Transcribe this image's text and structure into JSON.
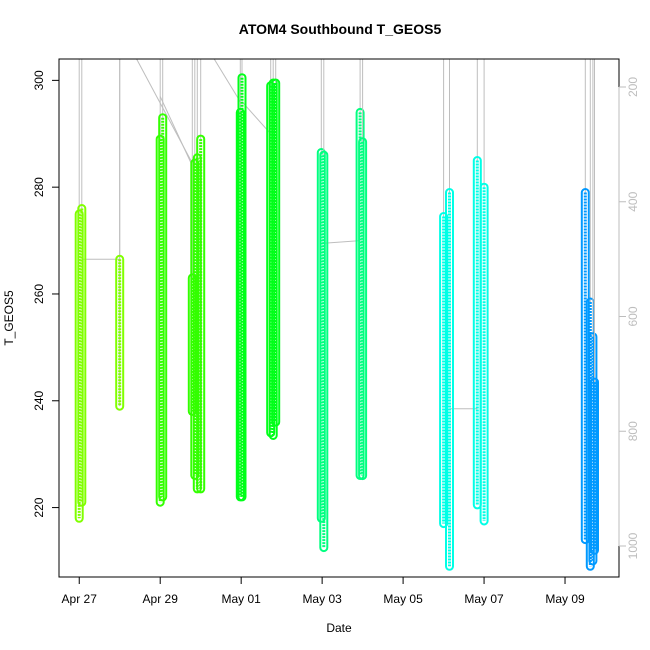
{
  "chart_data": {
    "type": "scatter",
    "title": "ATOM4 Southbound T_GEOS5",
    "xlabel": "Date",
    "ylabel": "T_GEOS5",
    "x_type": "date",
    "xlim": [
      "2018-04-26T12:00",
      "2018-05-10T08:00"
    ],
    "ylim": [
      207,
      304
    ],
    "x_ticks": [
      {
        "date": "2018-04-27",
        "label": "Apr 27"
      },
      {
        "date": "2018-04-29",
        "label": "Apr 29"
      },
      {
        "date": "2018-05-01",
        "label": "May 01"
      },
      {
        "date": "2018-05-03",
        "label": "May 03"
      },
      {
        "date": "2018-05-05",
        "label": "May 05"
      },
      {
        "date": "2018-05-07",
        "label": "May 07"
      },
      {
        "date": "2018-05-09",
        "label": "May 09"
      }
    ],
    "y_ticks": [
      220,
      240,
      260,
      280,
      300
    ],
    "right_axis": {
      "scale": "pressure (reversed)",
      "ticks": [
        200,
        400,
        600,
        800,
        1000
      ],
      "color": "#bdbdbd"
    },
    "grid": false,
    "legend": "none",
    "profile_line_color": "#bebebe",
    "series": [
      {
        "color": "#80ff00",
        "points": [
          {
            "x": "2018-04-27T00:00",
            "ymin": 218,
            "ymax": 275
          },
          {
            "x": "2018-04-27T01:30",
            "ymin": 221,
            "ymax": 276
          },
          {
            "x": "2018-04-28T00:00",
            "ymin": 239,
            "ymax": 266.5
          }
        ]
      },
      {
        "color": "#33ff00",
        "points": [
          {
            "x": "2018-04-29T00:00",
            "ymin": 221,
            "ymax": 289
          },
          {
            "x": "2018-04-29T01:30",
            "ymin": 222,
            "ymax": 293
          },
          {
            "x": "2018-04-29T19:00",
            "ymin": 238,
            "ymax": 263
          },
          {
            "x": "2018-04-29T20:30",
            "ymin": 226,
            "ymax": 284.5
          },
          {
            "x": "2018-04-29T22:00",
            "ymin": 223.5,
            "ymax": 285.5
          },
          {
            "x": "2018-04-30T00:00",
            "ymin": 223.5,
            "ymax": 289
          }
        ]
      },
      {
        "color": "#00ff19",
        "points": [
          {
            "x": "2018-04-30T23:30",
            "ymin": 222,
            "ymax": 294
          },
          {
            "x": "2018-05-01T00:30",
            "ymin": 222,
            "ymax": 300.5
          },
          {
            "x": "2018-05-01T17:30",
            "ymin": 234,
            "ymax": 299
          },
          {
            "x": "2018-05-01T19:00",
            "ymin": 233.5,
            "ymax": 299.5
          },
          {
            "x": "2018-05-01T20:30",
            "ymin": 236,
            "ymax": 299.5
          }
        ]
      },
      {
        "color": "#00ff80",
        "points": [
          {
            "x": "2018-05-02T23:30",
            "ymin": 218,
            "ymax": 286.5
          },
          {
            "x": "2018-05-03T01:00",
            "ymin": 212.5,
            "ymax": 286
          },
          {
            "x": "2018-05-03T22:30",
            "ymin": 226,
            "ymax": 294
          },
          {
            "x": "2018-05-04T00:00",
            "ymin": 226,
            "ymax": 288.5
          }
        ]
      },
      {
        "color": "#00ffe6",
        "points": [
          {
            "x": "2018-05-06T00:00",
            "ymin": 217,
            "ymax": 274.5
          },
          {
            "x": "2018-05-06T03:30",
            "ymin": 209,
            "ymax": 279
          },
          {
            "x": "2018-05-06T20:00",
            "ymin": 220.5,
            "ymax": 285
          },
          {
            "x": "2018-05-07T00:00",
            "ymin": 217.5,
            "ymax": 280
          }
        ]
      },
      {
        "color": "#0099ff",
        "points": [
          {
            "x": "2018-05-09T12:00",
            "ymin": 214,
            "ymax": 279
          },
          {
            "x": "2018-05-09T15:00",
            "ymin": 209,
            "ymax": 258.5
          },
          {
            "x": "2018-05-09T16:30",
            "ymin": 210,
            "ymax": 252
          },
          {
            "x": "2018-05-09T17:30",
            "ymin": 212,
            "ymax": 243.5
          }
        ]
      }
    ],
    "connectors": [
      {
        "from": {
          "x": "2018-04-27T01:30",
          "y": 266.5
        },
        "to": {
          "x": "2018-04-28T00:00",
          "y": 266.5
        }
      },
      {
        "from": {
          "x": "2018-04-28T00:00",
          "y": 304
        },
        "to": {
          "x": "2018-04-28T00:00",
          "y": 239
        }
      },
      {
        "from": {
          "x": "2018-04-28T10:00",
          "y": 304
        },
        "to": {
          "x": "2018-04-29T19:00",
          "y": 284.5
        }
      },
      {
        "from": {
          "x": "2018-04-29T00:00",
          "y": 297
        },
        "to": {
          "x": "2018-04-29T19:00",
          "y": 284
        }
      },
      {
        "from": {
          "x": "2018-04-30T08:00",
          "y": 304
        },
        "to": {
          "x": "2018-04-30T23:30",
          "y": 296
        }
      },
      {
        "from": {
          "x": "2018-05-01T00:30",
          "y": 296
        },
        "to": {
          "x": "2018-05-01T17:30",
          "y": 290
        }
      },
      {
        "from": {
          "x": "2018-05-03T01:00",
          "y": 269.5
        },
        "to": {
          "x": "2018-05-03T22:30",
          "y": 270
        }
      },
      {
        "from": {
          "x": "2018-05-06T03:30",
          "y": 238.5
        },
        "to": {
          "x": "2018-05-06T20:00",
          "y": 238.5
        }
      }
    ]
  }
}
